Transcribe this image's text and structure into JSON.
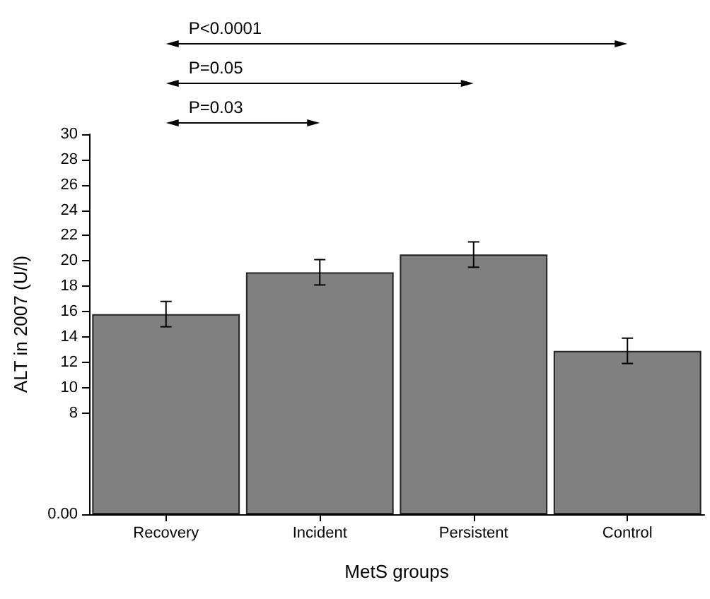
{
  "chart_data": {
    "type": "bar",
    "xlabel": "MetS groups",
    "ylabel": "ALT in 2007 (U/l)",
    "categories": [
      "Recovery",
      "Incident",
      "Persistent",
      "Control"
    ],
    "values": [
      15.8,
      19.1,
      20.5,
      12.9
    ],
    "color": "#808080",
    "errors": [
      1,
      1,
      1,
      1
    ],
    "ylim": [
      0,
      30
    ],
    "yticks": [
      {
        "value": 0,
        "label": "0.00"
      },
      8,
      10,
      12,
      14,
      16,
      18,
      20,
      22,
      24,
      26,
      28,
      30
    ],
    "annotations": [
      "P=0.03",
      "P=0.05",
      "P<0.0001"
    ],
    "grid": false
  }
}
